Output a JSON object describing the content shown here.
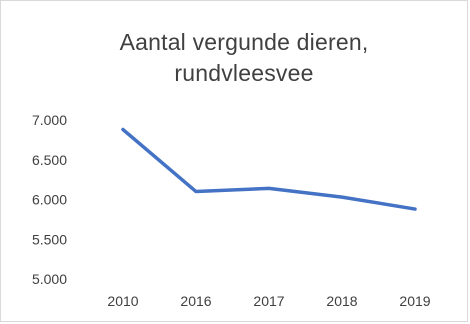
{
  "chart_data": {
    "type": "line",
    "title": "Aantal vergunde dieren,\nrundvleesvee",
    "xlabel": "",
    "ylabel": "",
    "categories": [
      "2010",
      "2016",
      "2017",
      "2018",
      "2019"
    ],
    "series": [
      {
        "values": [
          6880,
          6100,
          6140,
          6030,
          5880
        ]
      }
    ],
    "ylim": [
      5000,
      7000
    ],
    "y_ticks": [
      5000,
      5500,
      6000,
      6500,
      7000
    ],
    "y_tick_labels": [
      "5.000",
      "5.500",
      "6.000",
      "6.500",
      "7.000"
    ],
    "grid": false,
    "legend": "none",
    "line_color": "#4472c4"
  }
}
